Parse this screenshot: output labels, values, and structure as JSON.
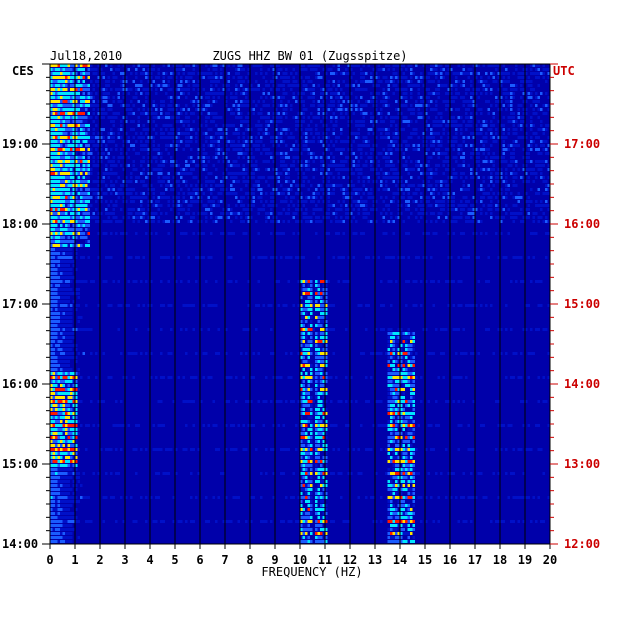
{
  "chart_data": {
    "type": "heatmap",
    "title": "ZUGS HHZ BW 01 (Zugsspitze)",
    "date": "Jul18,2010",
    "xlabel": "FREQUENCY (HZ)",
    "left_timezone": "CES",
    "right_timezone": "UTC",
    "xlim": [
      0,
      20
    ],
    "x_ticks": [
      "0",
      "1",
      "2",
      "3",
      "4",
      "5",
      "6",
      "7",
      "8",
      "9",
      "10",
      "11",
      "12",
      "13",
      "14",
      "15",
      "16",
      "17",
      "18",
      "19",
      "20"
    ],
    "left_ticks": [
      "19:00",
      "18:00",
      "17:00",
      "16:00",
      "15:00",
      "14:00"
    ],
    "right_ticks": [
      "17:00",
      "16:00",
      "15:00",
      "14:00",
      "13:00",
      "12:00"
    ],
    "time_range_utc": [
      "12:00",
      "18:00"
    ],
    "colors": {
      "background": "#0000aa",
      "low": "#0010c8",
      "mid": "#1a5cff",
      "high": "#00e6ff",
      "peak": "#ffe400",
      "max": "#ff1a00",
      "right_axis": "#cc0000",
      "grid": "#000000"
    },
    "features": [
      {
        "band": [
          0,
          1.5
        ],
        "time_utc": [
          "15:45",
          "18:00"
        ],
        "intensity": "high"
      },
      {
        "band": [
          0,
          1
        ],
        "time_utc": [
          "13:00",
          "14:10"
        ],
        "intensity": "max"
      },
      {
        "band": [
          10,
          10.4
        ],
        "time_utc": [
          "12:00",
          "15:20"
        ],
        "intensity": "peak"
      },
      {
        "band": [
          10.6,
          11
        ],
        "time_utc": [
          "12:00",
          "15:20"
        ],
        "intensity": "peak"
      },
      {
        "band": [
          13.5,
          14.5
        ],
        "time_utc": [
          "12:00",
          "14:40"
        ],
        "intensity": "peak"
      }
    ]
  }
}
